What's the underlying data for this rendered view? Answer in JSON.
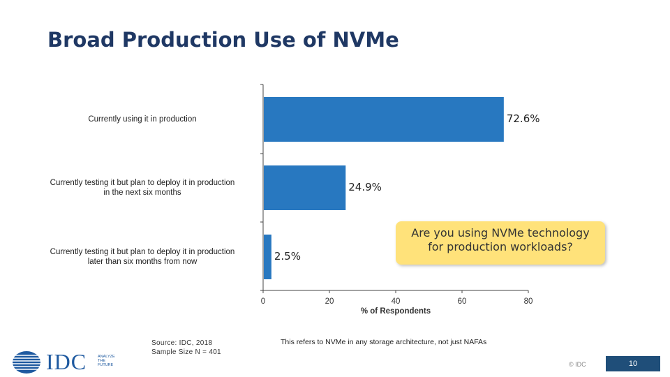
{
  "slide": {
    "title": "Broad Production Use of NVMe",
    "callout": [
      "Are you using NVMe technology",
      "for production workloads?"
    ],
    "source_lines": [
      "Source: IDC, 2018",
      "Sample Size N = 401"
    ],
    "footnote": "This refers to NVMe in any storage architecture, not just NAFAs",
    "copyright": "© IDC",
    "page_number": "10",
    "logo": {
      "text": "IDC",
      "tagline": [
        "ANALYZE",
        "THE",
        "FUTURE"
      ]
    }
  },
  "chart_data": {
    "type": "bar",
    "orientation": "horizontal",
    "categories": [
      [
        "Currently using it in production"
      ],
      [
        "Currently testing it but plan to deploy it in production",
        "in the next six months"
      ],
      [
        "Currently testing it but plan to deploy it in production",
        "later than six months from now"
      ]
    ],
    "values": [
      72.6,
      24.9,
      2.5
    ],
    "value_labels": [
      "72.6%",
      "24.9%",
      "2.5%"
    ],
    "xlabel": "% of Respondents",
    "xlim": [
      0,
      80
    ],
    "xticks": [
      0,
      20,
      40,
      60,
      80
    ],
    "bar_color": "#2878c0",
    "grid": false
  }
}
